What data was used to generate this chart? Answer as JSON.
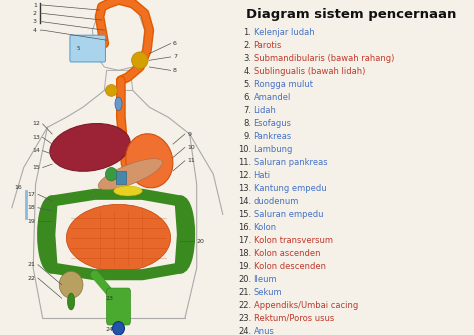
{
  "title": "Diagram sistem pencernaan",
  "background_color": "#f5f0e8",
  "title_fontsize": 9.5,
  "title_fontweight": "bold",
  "items": [
    {
      "num": "1.",
      "text": "Kelenjar ludah",
      "color": "#4472c4"
    },
    {
      "num": "2.",
      "text": "Parotis",
      "color": "#c0392b"
    },
    {
      "num": "3.",
      "text": "Submandibularis (bawah rahang)",
      "color": "#c0392b"
    },
    {
      "num": "4.",
      "text": "Sublingualis (bawah lidah)",
      "color": "#c0392b"
    },
    {
      "num": "5.",
      "text": "Rongga mulut",
      "color": "#4472c4"
    },
    {
      "num": "6.",
      "text": "Amandel",
      "color": "#4472c4"
    },
    {
      "num": "7.",
      "text": "Lidah",
      "color": "#4472c4"
    },
    {
      "num": "8.",
      "text": "Esofagus",
      "color": "#4472c4"
    },
    {
      "num": "9.",
      "text": "Pankreas",
      "color": "#4472c4"
    },
    {
      "num": "10.",
      "text": "Lambung",
      "color": "#4472c4"
    },
    {
      "num": "11.",
      "text": "Saluran pankreas",
      "color": "#4472c4"
    },
    {
      "num": "12.",
      "text": "Hati",
      "color": "#4472c4"
    },
    {
      "num": "13.",
      "text": "Kantung empedu",
      "color": "#4472c4"
    },
    {
      "num": "14.",
      "text": "duodenum",
      "color": "#4472c4"
    },
    {
      "num": "15.",
      "text": "Saluran empedu",
      "color": "#4472c4"
    },
    {
      "num": "16.",
      "text": "Kolon",
      "color": "#4472c4"
    },
    {
      "num": "17.",
      "text": "Kolon transversum",
      "color": "#c0392b"
    },
    {
      "num": "18.",
      "text": "Kolon ascenden",
      "color": "#c0392b"
    },
    {
      "num": "19.",
      "text": "Kolon descenden",
      "color": "#c0392b"
    },
    {
      "num": "20.",
      "text": "Ileum",
      "color": "#4472c4"
    },
    {
      "num": "21.",
      "text": "Sekum",
      "color": "#4472c4"
    },
    {
      "num": "22.",
      "text": "Appendiks/Umbai cacing",
      "color": "#c0392b"
    },
    {
      "num": "23.",
      "text": "Rektum/Poros usus",
      "color": "#c0392b"
    },
    {
      "num": "24.",
      "text": "Anus",
      "color": "#4472c4"
    }
  ],
  "legend_item_fontsize": 6.0,
  "legend_num_fontsize": 6.0
}
